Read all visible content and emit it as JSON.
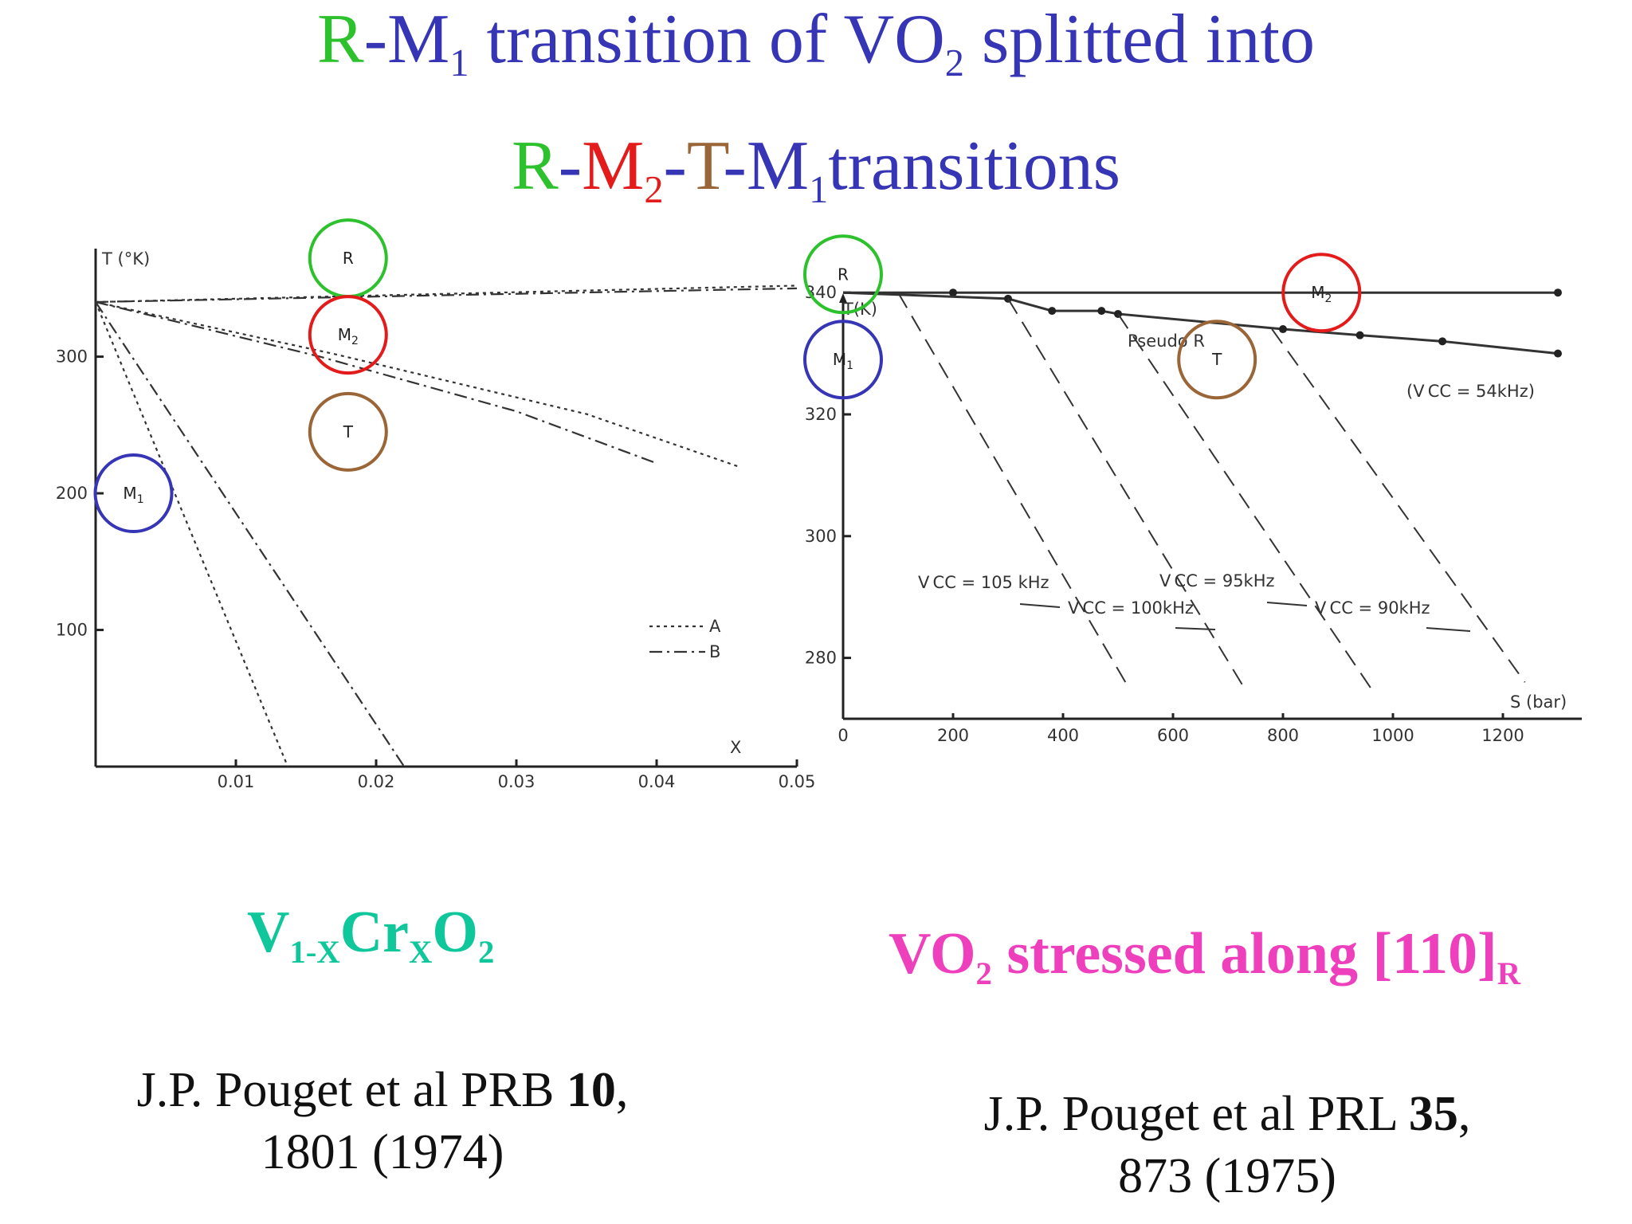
{
  "slide": {
    "title_line1": [
      {
        "text": "R",
        "color": "g"
      },
      {
        "text": "-M",
        "color": "b"
      },
      {
        "text": "1",
        "color": "b",
        "sub": true
      },
      {
        "text": " transition of VO",
        "color": "b"
      },
      {
        "text": "2",
        "color": "b",
        "sub": true
      },
      {
        "text": " splitted into",
        "color": "b"
      }
    ],
    "title_line2": [
      {
        "text": "R",
        "color": "g"
      },
      {
        "text": "-",
        "color": "b"
      },
      {
        "text": "M",
        "color": "r"
      },
      {
        "text": "2",
        "color": "r",
        "sub": true
      },
      {
        "text": "-",
        "color": "b"
      },
      {
        "text": "T",
        "color": "t"
      },
      {
        "text": "-M",
        "color": "b"
      },
      {
        "text": "1",
        "color": "b",
        "sub": true
      },
      {
        "text": "transitions",
        "color": "b"
      }
    ],
    "caption_left": [
      {
        "text": "V"
      },
      {
        "text": "1-X",
        "sub": true
      },
      {
        "text": "Cr"
      },
      {
        "text": "X",
        "sub": true
      },
      {
        "text": "O"
      },
      {
        "text": "2",
        "sub": true
      }
    ],
    "caption_right": [
      {
        "text": "VO"
      },
      {
        "text": "2",
        "sub": true
      },
      {
        "text": " stressed along [110]"
      },
      {
        "text": "R",
        "sub": true
      }
    ],
    "ref_left": {
      "pre": "J.P. Pouget et al PRB ",
      "bold": "10",
      "post": ",",
      "line2": "1801 (1974)"
    },
    "ref_right": {
      "pre": "J.P. Pouget et al PRL ",
      "bold": "35",
      "post": ",",
      "line2": "873 (1975)"
    },
    "colors": {
      "green": "#2dc12d",
      "blue": "#3535b5",
      "red": "#e31b1b",
      "brown": "#9a6537",
      "teal": "#0fc79a",
      "pink": "#ee3fbd"
    }
  },
  "chart_data": [
    {
      "type": "line",
      "ylabel": "T (°K)",
      "xlabel": "X",
      "x_ticks": [
        "0.01",
        "0.02",
        "0.03",
        "0.04",
        "0.05"
      ],
      "y_ticks": [
        "300",
        "200",
        "100"
      ],
      "xlim": [
        0,
        0.05
      ],
      "ylim": [
        0,
        340
      ],
      "legend": [
        {
          "style": "dotted",
          "label": "A"
        },
        {
          "style": "dash-dot",
          "label": "B"
        }
      ],
      "legend_position": "lower-right",
      "phase_labels": [
        {
          "label": "R",
          "sub": "",
          "x": 0.018,
          "y": 372,
          "circle": "green"
        },
        {
          "label": "M",
          "sub": "2",
          "x": 0.018,
          "y": 316,
          "circle": "red"
        },
        {
          "label": "T",
          "sub": "",
          "x": 0.018,
          "y": 245,
          "circle": "brown"
        },
        {
          "label": "M",
          "sub": "1",
          "x": 0.0027,
          "y": 200,
          "circle": "blue"
        }
      ],
      "series": [
        {
          "style": "dotted",
          "values": [
            [
              0,
              340
            ],
            [
              0.05,
              352
            ]
          ]
        },
        {
          "style": "dash-dot",
          "values": [
            [
              0,
              340
            ],
            [
              0.05,
              350
            ]
          ]
        },
        {
          "style": "dotted",
          "values": [
            [
              0,
              340
            ],
            [
              0.017,
              302
            ],
            [
              0.035,
              258
            ],
            [
              0.046,
              219
            ]
          ]
        },
        {
          "style": "dash-dot",
          "values": [
            [
              0,
              340
            ],
            [
              0.016,
              300
            ],
            [
              0.03,
              260
            ],
            [
              0.04,
              222
            ]
          ]
        },
        {
          "style": "dotted",
          "values": [
            [
              0,
              340
            ],
            [
              0.0137,
              0
            ]
          ]
        },
        {
          "style": "dash-dot",
          "values": [
            [
              0,
              340
            ],
            [
              0.022,
              0
            ]
          ]
        }
      ]
    },
    {
      "type": "line",
      "ylabel": "T(K)",
      "xlabel": "S (bar)",
      "x_ticks": [
        "0",
        "200",
        "400",
        "600",
        "800",
        "1000",
        "1200"
      ],
      "y_ticks": [
        "340",
        "320",
        "300",
        "280"
      ],
      "xlim": [
        0,
        1300
      ],
      "ylim": [
        270,
        345
      ],
      "labels": [
        "Pseudo R",
        "(V CC = 54kHz)",
        "V CC = 105 kHz",
        "V CC = 100kHz",
        "V CC = 95kHz",
        "V CC = 90kHz"
      ],
      "phase_labels": [
        {
          "label": "R",
          "sub": "",
          "x": 0,
          "y": 343,
          "circle": "green"
        },
        {
          "label": "M",
          "sub": "2",
          "x": 870,
          "y": 340,
          "circle": "red"
        },
        {
          "label": "T",
          "sub": "",
          "x": 680,
          "y": 329,
          "circle": "brown"
        },
        {
          "label": "M",
          "sub": "1",
          "x": 0,
          "y": 329,
          "circle": "blue"
        }
      ],
      "series": [
        {
          "name": "Pseudo R",
          "style": "solid",
          "values": [
            [
              0,
              340
            ],
            [
              200,
              340
            ],
            [
              1300,
              340
            ]
          ]
        },
        {
          "style": "solid",
          "values": [
            [
              0,
              340
            ],
            [
              300,
              339
            ],
            [
              380,
              337
            ],
            [
              470,
              337
            ],
            [
              500,
              336.5
            ],
            [
              800,
              334
            ],
            [
              940,
              333
            ],
            [
              1090,
              332
            ],
            [
              1300,
              330
            ]
          ]
        },
        {
          "style": "dashed",
          "values": [
            [
              100,
              340
            ],
            [
              520,
              275
            ]
          ]
        },
        {
          "style": "dashed",
          "values": [
            [
              300,
              339
            ],
            [
              730,
              275
            ]
          ]
        },
        {
          "style": "dashed",
          "values": [
            [
              500,
              336.5
            ],
            [
              960,
              275
            ]
          ]
        },
        {
          "style": "dashed",
          "values": [
            [
              780,
              334
            ],
            [
              1240,
              276
            ]
          ]
        }
      ]
    }
  ]
}
